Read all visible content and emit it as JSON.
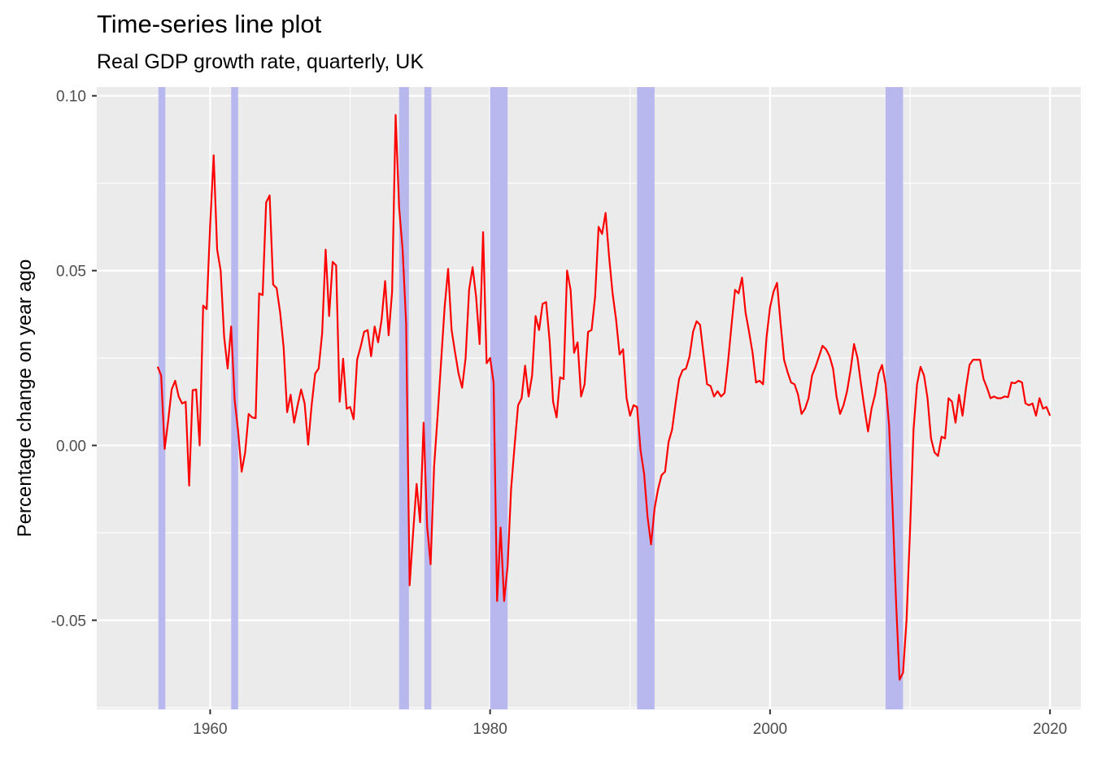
{
  "chart_data": {
    "type": "line",
    "title": "Time-series line plot",
    "subtitle": "Real GDP growth rate, quarterly, UK",
    "xlabel": "",
    "ylabel": "Percentage change on year ago",
    "xlim": [
      1951.9,
      2022.2
    ],
    "ylim": [
      -0.0755,
      0.1025
    ],
    "x_ticks": [
      1960,
      1980,
      2000,
      2020
    ],
    "x_tick_labels": [
      "1960",
      "1980",
      "2000",
      "2020"
    ],
    "y_ticks": [
      -0.05,
      0.0,
      0.05,
      0.1
    ],
    "y_tick_labels": [
      "-0.05",
      "0.00",
      "0.05",
      "0.10"
    ],
    "grid": true,
    "background": "#ebebeb",
    "grid_color": "#ffffff",
    "line_color": "#ff0000",
    "shade_color": "#b8b8ee",
    "recessions": [
      [
        1956.3,
        1956.8
      ],
      [
        1961.5,
        1962.0
      ],
      [
        1973.5,
        1974.2
      ],
      [
        1975.3,
        1975.8
      ],
      [
        1980.0,
        1981.25
      ],
      [
        1990.5,
        1991.75
      ],
      [
        2008.25,
        2009.5
      ]
    ],
    "series": [
      {
        "points": [
          [
            1956.25,
            0.0225
          ],
          [
            1956.5,
            0.02
          ],
          [
            1956.75,
            -0.001
          ],
          [
            1957.0,
            0.007
          ],
          [
            1957.25,
            0.016
          ],
          [
            1957.5,
            0.0185
          ],
          [
            1957.75,
            0.014
          ],
          [
            1958.0,
            0.012
          ],
          [
            1958.25,
            0.0125
          ],
          [
            1958.5,
            -0.0115
          ],
          [
            1958.75,
            0.0158
          ],
          [
            1959.0,
            0.016
          ],
          [
            1959.25,
            0.0
          ],
          [
            1959.5,
            0.04
          ],
          [
            1959.75,
            0.039
          ],
          [
            1960.0,
            0.063
          ],
          [
            1960.25,
            0.083
          ],
          [
            1960.5,
            0.056
          ],
          [
            1960.75,
            0.05
          ],
          [
            1961.0,
            0.031
          ],
          [
            1961.25,
            0.022
          ],
          [
            1961.5,
            0.034
          ],
          [
            1961.75,
            0.013
          ],
          [
            1962.0,
            0.004
          ],
          [
            1962.25,
            -0.0075
          ],
          [
            1962.5,
            -0.002
          ],
          [
            1962.75,
            0.009
          ],
          [
            1963.0,
            0.008
          ],
          [
            1963.25,
            0.0078
          ],
          [
            1963.5,
            0.0435
          ],
          [
            1963.75,
            0.043
          ],
          [
            1964.0,
            0.0695
          ],
          [
            1964.25,
            0.0715
          ],
          [
            1964.5,
            0.046
          ],
          [
            1964.75,
            0.045
          ],
          [
            1965.0,
            0.038
          ],
          [
            1965.25,
            0.028
          ],
          [
            1965.5,
            0.0095
          ],
          [
            1965.75,
            0.0145
          ],
          [
            1966.0,
            0.0065
          ],
          [
            1966.25,
            0.0115
          ],
          [
            1966.5,
            0.016
          ],
          [
            1966.75,
            0.012
          ],
          [
            1967.0,
            0.0002
          ],
          [
            1967.25,
            0.0115
          ],
          [
            1967.5,
            0.0205
          ],
          [
            1967.75,
            0.022
          ],
          [
            1968.0,
            0.032
          ],
          [
            1968.25,
            0.056
          ],
          [
            1968.5,
            0.037
          ],
          [
            1968.75,
            0.0525
          ],
          [
            1969.0,
            0.0515
          ],
          [
            1969.25,
            0.0125
          ],
          [
            1969.5,
            0.0248
          ],
          [
            1969.75,
            0.0105
          ],
          [
            1970.0,
            0.011
          ],
          [
            1970.25,
            0.0075
          ],
          [
            1970.5,
            0.0245
          ],
          [
            1970.75,
            0.0282
          ],
          [
            1971.0,
            0.0325
          ],
          [
            1971.25,
            0.033
          ],
          [
            1971.5,
            0.0255
          ],
          [
            1971.75,
            0.034
          ],
          [
            1972.0,
            0.0295
          ],
          [
            1972.25,
            0.036
          ],
          [
            1972.5,
            0.047
          ],
          [
            1972.75,
            0.0315
          ],
          [
            1973.0,
            0.044
          ],
          [
            1973.25,
            0.0945
          ],
          [
            1973.5,
            0.068
          ],
          [
            1973.75,
            0.056
          ],
          [
            1974.0,
            0.035
          ],
          [
            1974.25,
            -0.04
          ],
          [
            1974.5,
            -0.025
          ],
          [
            1974.75,
            -0.011
          ],
          [
            1975.0,
            -0.022
          ],
          [
            1975.25,
            0.0065
          ],
          [
            1975.5,
            -0.023
          ],
          [
            1975.75,
            -0.034
          ],
          [
            1976.0,
            -0.006
          ],
          [
            1976.25,
            0.0085
          ],
          [
            1976.5,
            0.024
          ],
          [
            1976.75,
            0.0395
          ],
          [
            1977.0,
            0.0505
          ],
          [
            1977.25,
            0.033
          ],
          [
            1977.5,
            0.0265
          ],
          [
            1977.75,
            0.0205
          ],
          [
            1978.0,
            0.0165
          ],
          [
            1978.25,
            0.025
          ],
          [
            1978.5,
            0.0445
          ],
          [
            1978.75,
            0.051
          ],
          [
            1979.0,
            0.0425
          ],
          [
            1979.25,
            0.029
          ],
          [
            1979.5,
            0.061
          ],
          [
            1979.75,
            0.0235
          ],
          [
            1980.0,
            0.025
          ],
          [
            1980.25,
            0.018
          ],
          [
            1980.5,
            -0.0445
          ],
          [
            1980.75,
            -0.0235
          ],
          [
            1981.0,
            -0.0445
          ],
          [
            1981.25,
            -0.0345
          ],
          [
            1981.5,
            -0.0125
          ],
          [
            1981.75,
            0.0
          ],
          [
            1982.0,
            0.0115
          ],
          [
            1982.25,
            0.0135
          ],
          [
            1982.5,
            0.0228
          ],
          [
            1982.75,
            0.014
          ],
          [
            1983.0,
            0.02
          ],
          [
            1983.25,
            0.037
          ],
          [
            1983.5,
            0.033
          ],
          [
            1983.75,
            0.0405
          ],
          [
            1984.0,
            0.041
          ],
          [
            1984.25,
            0.03
          ],
          [
            1984.5,
            0.0125
          ],
          [
            1984.75,
            0.008
          ],
          [
            1985.0,
            0.0195
          ],
          [
            1985.25,
            0.019
          ],
          [
            1985.5,
            0.05
          ],
          [
            1985.75,
            0.0445
          ],
          [
            1986.0,
            0.0265
          ],
          [
            1986.25,
            0.0295
          ],
          [
            1986.5,
            0.014
          ],
          [
            1986.75,
            0.0175
          ],
          [
            1987.0,
            0.0325
          ],
          [
            1987.25,
            0.033
          ],
          [
            1987.5,
            0.0425
          ],
          [
            1987.75,
            0.0625
          ],
          [
            1988.0,
            0.0605
          ],
          [
            1988.25,
            0.0665
          ],
          [
            1988.5,
            0.054
          ],
          [
            1988.75,
            0.0435
          ],
          [
            1989.0,
            0.036
          ],
          [
            1989.25,
            0.026
          ],
          [
            1989.5,
            0.0275
          ],
          [
            1989.75,
            0.0135
          ],
          [
            1990.0,
            0.0085
          ],
          [
            1990.25,
            0.0115
          ],
          [
            1990.5,
            0.011
          ],
          [
            1990.75,
            -0.0015
          ],
          [
            1991.0,
            -0.008
          ],
          [
            1991.25,
            -0.0205
          ],
          [
            1991.5,
            -0.0283
          ],
          [
            1991.75,
            -0.018
          ],
          [
            1992.0,
            -0.0125
          ],
          [
            1992.25,
            -0.0085
          ],
          [
            1992.5,
            -0.0075
          ],
          [
            1992.75,
            0.001
          ],
          [
            1993.0,
            0.0045
          ],
          [
            1993.25,
            0.012
          ],
          [
            1993.5,
            0.019
          ],
          [
            1993.75,
            0.0215
          ],
          [
            1994.0,
            0.022
          ],
          [
            1994.25,
            0.0255
          ],
          [
            1994.5,
            0.0325
          ],
          [
            1994.75,
            0.0355
          ],
          [
            1995.0,
            0.0345
          ],
          [
            1995.25,
            0.026
          ],
          [
            1995.5,
            0.0175
          ],
          [
            1995.75,
            0.017
          ],
          [
            1996.0,
            0.014
          ],
          [
            1996.25,
            0.0155
          ],
          [
            1996.5,
            0.014
          ],
          [
            1996.75,
            0.015
          ],
          [
            1997.0,
            0.024
          ],
          [
            1997.25,
            0.0345
          ],
          [
            1997.5,
            0.0445
          ],
          [
            1997.75,
            0.0435
          ],
          [
            1998.0,
            0.048
          ],
          [
            1998.25,
            0.038
          ],
          [
            1998.5,
            0.0325
          ],
          [
            1998.75,
            0.0265
          ],
          [
            1999.0,
            0.018
          ],
          [
            1999.25,
            0.0185
          ],
          [
            1999.5,
            0.0175
          ],
          [
            1999.75,
            0.031
          ],
          [
            2000.0,
            0.0395
          ],
          [
            2000.25,
            0.044
          ],
          [
            2000.5,
            0.0465
          ],
          [
            2000.75,
            0.035
          ],
          [
            2001.0,
            0.0245
          ],
          [
            2001.25,
            0.021
          ],
          [
            2001.5,
            0.018
          ],
          [
            2001.75,
            0.0175
          ],
          [
            2002.0,
            0.0145
          ],
          [
            2002.25,
            0.009
          ],
          [
            2002.5,
            0.0105
          ],
          [
            2002.75,
            0.0135
          ],
          [
            2003.0,
            0.02
          ],
          [
            2003.25,
            0.0225
          ],
          [
            2003.5,
            0.0255
          ],
          [
            2003.75,
            0.0285
          ],
          [
            2004.0,
            0.0275
          ],
          [
            2004.25,
            0.0255
          ],
          [
            2004.5,
            0.022
          ],
          [
            2004.75,
            0.014
          ],
          [
            2005.0,
            0.009
          ],
          [
            2005.25,
            0.0115
          ],
          [
            2005.5,
            0.0155
          ],
          [
            2005.75,
            0.0215
          ],
          [
            2006.0,
            0.029
          ],
          [
            2006.25,
            0.025
          ],
          [
            2006.5,
            0.0175
          ],
          [
            2006.75,
            0.0105
          ],
          [
            2007.0,
            0.004
          ],
          [
            2007.25,
            0.0105
          ],
          [
            2007.5,
            0.0145
          ],
          [
            2007.75,
            0.0205
          ],
          [
            2008.0,
            0.023
          ],
          [
            2008.25,
            0.0175
          ],
          [
            2008.5,
            0.006
          ],
          [
            2008.75,
            -0.0175
          ],
          [
            2009.0,
            -0.0445
          ],
          [
            2009.25,
            -0.067
          ],
          [
            2009.5,
            -0.065
          ],
          [
            2009.75,
            -0.05
          ],
          [
            2010.0,
            -0.0245
          ],
          [
            2010.25,
            0.0045
          ],
          [
            2010.5,
            0.0175
          ],
          [
            2010.75,
            0.0225
          ],
          [
            2011.0,
            0.02
          ],
          [
            2011.25,
            0.0135
          ],
          [
            2011.5,
            0.002
          ],
          [
            2011.75,
            -0.002
          ],
          [
            2012.0,
            -0.003
          ],
          [
            2012.25,
            0.0025
          ],
          [
            2012.5,
            0.002
          ],
          [
            2012.75,
            0.0135
          ],
          [
            2013.0,
            0.0125
          ],
          [
            2013.25,
            0.0065
          ],
          [
            2013.5,
            0.0145
          ],
          [
            2013.75,
            0.0085
          ],
          [
            2014.0,
            0.0165
          ],
          [
            2014.25,
            0.023
          ],
          [
            2014.5,
            0.0245
          ],
          [
            2014.75,
            0.0245
          ],
          [
            2015.0,
            0.0245
          ],
          [
            2015.25,
            0.019
          ],
          [
            2015.5,
            0.0165
          ],
          [
            2015.75,
            0.0135
          ],
          [
            2016.0,
            0.014
          ],
          [
            2016.25,
            0.0135
          ],
          [
            2016.5,
            0.0135
          ],
          [
            2016.75,
            0.014
          ],
          [
            2017.0,
            0.0138
          ],
          [
            2017.25,
            0.018
          ],
          [
            2017.5,
            0.0178
          ],
          [
            2017.75,
            0.0185
          ],
          [
            2018.0,
            0.018
          ],
          [
            2018.25,
            0.012
          ],
          [
            2018.5,
            0.0115
          ],
          [
            2018.75,
            0.012
          ],
          [
            2019.0,
            0.0085
          ],
          [
            2019.25,
            0.0135
          ],
          [
            2019.5,
            0.0105
          ],
          [
            2019.75,
            0.011
          ],
          [
            2020.0,
            0.0085
          ]
        ]
      }
    ]
  }
}
